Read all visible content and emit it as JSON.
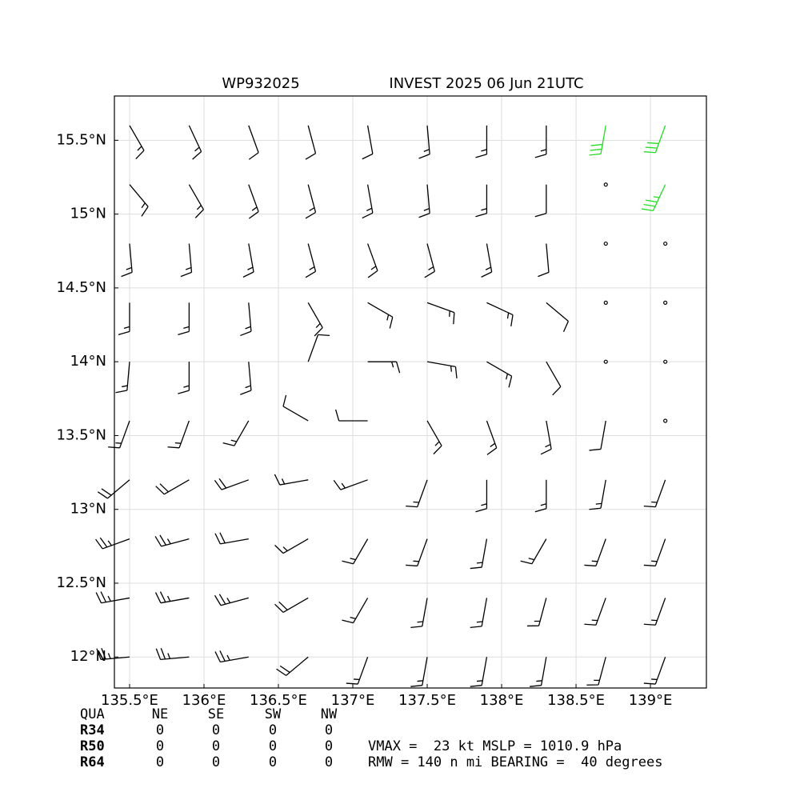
{
  "chart_data": {
    "type": "wind-barbs",
    "title_left": "WP932025",
    "title_right": "INVEST 2025 06 Jun 21UTC",
    "xlim": [
      135.398,
      139.376
    ],
    "ylim": [
      11.79,
      15.8
    ],
    "xticks": [
      {
        "value": 135.5,
        "label": "135.5°E"
      },
      {
        "value": 136,
        "label": "136°E"
      },
      {
        "value": 136.5,
        "label": "136.5°E"
      },
      {
        "value": 137,
        "label": "137°E"
      },
      {
        "value": 137.5,
        "label": "137.5°E"
      },
      {
        "value": 138,
        "label": "138°E"
      },
      {
        "value": 138.5,
        "label": "138.5°E"
      },
      {
        "value": 139,
        "label": "139°E"
      }
    ],
    "yticks": [
      {
        "value": 12,
        "label": "12°N"
      },
      {
        "value": 12.5,
        "label": "12.5°N"
      },
      {
        "value": 13,
        "label": "13°N"
      },
      {
        "value": 13.5,
        "label": "13.5°N"
      },
      {
        "value": 14,
        "label": "14°N"
      },
      {
        "value": 14.5,
        "label": "14.5°N"
      },
      {
        "value": 15,
        "label": "15°N"
      },
      {
        "value": 15.5,
        "label": "15.5°N"
      }
    ],
    "grid": true,
    "color": "#000000",
    "strong_color": "#22dd22",
    "strong_threshold": 30,
    "barbs": {
      "lon": [
        135.5,
        135.9,
        136.3,
        136.7,
        137.1,
        137.5,
        137.9,
        138.3,
        138.7,
        139.1
      ],
      "lat": [
        15.6,
        15.2,
        14.8,
        14.4,
        14.0,
        13.6,
        13.2,
        12.8,
        12.4,
        12.0
      ],
      "direction": [
        [
          150,
          155,
          160,
          165,
          170,
          175,
          180,
          180,
          190,
          200
        ],
        [
          140,
          150,
          160,
          165,
          170,
          175,
          180,
          180,
          0,
          205
        ],
        [
          175,
          175,
          170,
          165,
          160,
          165,
          170,
          175,
          0,
          0
        ],
        [
          180,
          180,
          175,
          150,
          120,
          110,
          115,
          130,
          0,
          0
        ],
        [
          185,
          180,
          175,
          20,
          90,
          100,
          120,
          150,
          0,
          0
        ],
        [
          200,
          200,
          210,
          300,
          270,
          150,
          160,
          170,
          190,
          0
        ],
        [
          230,
          240,
          250,
          260,
          250,
          200,
          180,
          180,
          190,
          200
        ],
        [
          250,
          255,
          260,
          240,
          210,
          200,
          190,
          210,
          200,
          200
        ],
        [
          260,
          260,
          255,
          240,
          210,
          190,
          190,
          195,
          200,
          200
        ],
        [
          265,
          265,
          260,
          230,
          200,
          190,
          190,
          190,
          195,
          200
        ]
      ],
      "speed": [
        [
          15,
          15,
          10,
          10,
          10,
          15,
          15,
          15,
          30,
          30
        ],
        [
          15,
          15,
          15,
          15,
          15,
          15,
          15,
          10,
          0,
          35
        ],
        [
          15,
          15,
          15,
          15,
          15,
          15,
          15,
          10,
          0,
          0
        ],
        [
          15,
          15,
          15,
          15,
          15,
          15,
          15,
          10,
          0,
          0
        ],
        [
          15,
          15,
          15,
          10,
          15,
          15,
          15,
          10,
          0,
          0
        ],
        [
          15,
          15,
          15,
          10,
          10,
          15,
          15,
          15,
          10,
          0
        ],
        [
          20,
          20,
          20,
          15,
          15,
          15,
          15,
          15,
          15,
          15
        ],
        [
          25,
          25,
          20,
          15,
          15,
          15,
          15,
          15,
          15,
          15
        ],
        [
          25,
          25,
          25,
          20,
          15,
          15,
          15,
          15,
          15,
          15
        ],
        [
          25,
          25,
          25,
          20,
          15,
          15,
          15,
          15,
          15,
          15
        ]
      ]
    }
  },
  "table": {
    "header": [
      "QUA",
      "NE",
      "SE",
      "SW",
      "NW"
    ],
    "rows": [
      [
        "R34",
        "0",
        "0",
        "0",
        "0"
      ],
      [
        "R50",
        "0",
        "0",
        "0",
        "0"
      ],
      [
        "R64",
        "0",
        "0",
        "0",
        "0"
      ]
    ],
    "summary": [
      "VMAX =  23 kt MSLP = 1010.9 hPa",
      "RMW = 140 n mi BEARING =  40 degrees"
    ]
  }
}
